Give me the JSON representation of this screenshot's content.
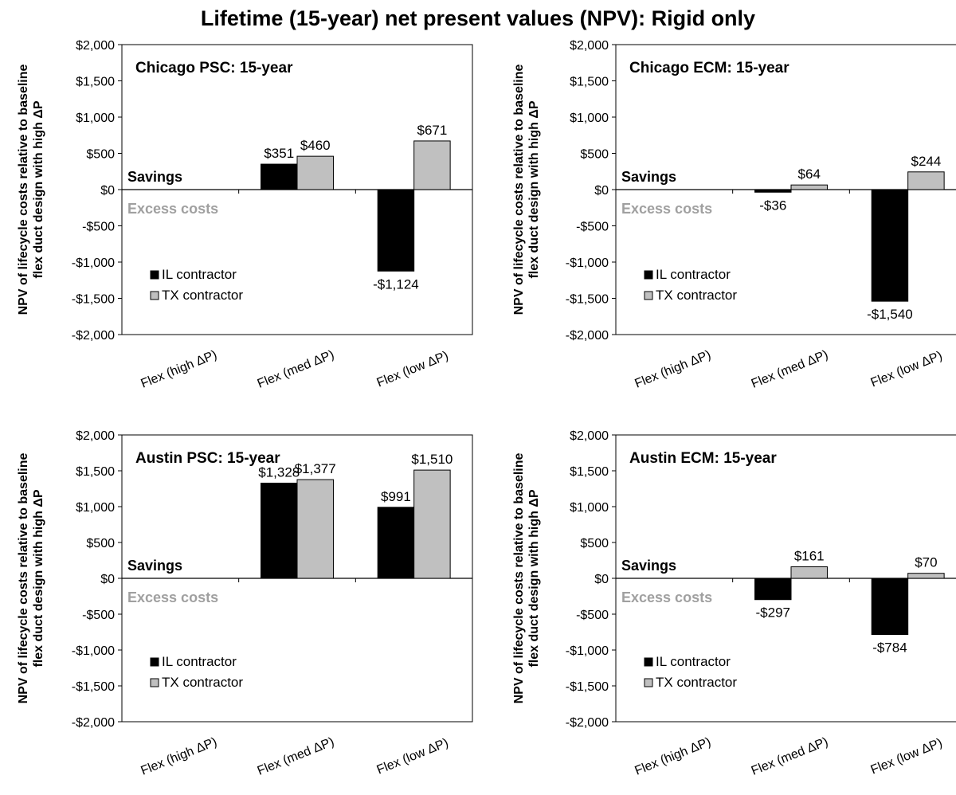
{
  "title": "Lifetime (15-year) net present values (NPV): Rigid only",
  "chart_data": [
    {
      "type": "bar",
      "title": "Chicago PSC: 15-year",
      "ylabel": "NPV of lifecycle costs relative to baseline flex duct design with high ΔP",
      "ylim": [
        -2000,
        2000
      ],
      "yticks": [
        2000,
        1500,
        1000,
        500,
        0,
        -500,
        -1000,
        -1500,
        -2000
      ],
      "ytick_labels": [
        "$2,000",
        "$1,500",
        "$1,000",
        "$500",
        "$0",
        "-$500",
        "-$1,000",
        "-$1,500",
        "-$2,000"
      ],
      "categories": [
        "Flex (high ΔP)",
        "Flex (med ΔP)",
        "Flex (low ΔP)"
      ],
      "series": [
        {
          "name": "IL contractor",
          "color": "#000000",
          "values": [
            null,
            351,
            -1124
          ],
          "labels": [
            "",
            "$351",
            "-$1,124"
          ]
        },
        {
          "name": "TX contractor",
          "color": "#c0c0c0",
          "values": [
            null,
            460,
            671
          ],
          "labels": [
            "",
            "$460",
            "$671"
          ]
        }
      ],
      "annotations": {
        "savings": "Savings",
        "excess": "Excess costs"
      },
      "legend": "bottom-left",
      "grid": false
    },
    {
      "type": "bar",
      "title": "Chicago ECM: 15-year",
      "ylabel": "NPV of lifecycle costs relative to baseline flex duct design with high ΔP",
      "ylim": [
        -2000,
        2000
      ],
      "yticks": [
        2000,
        1500,
        1000,
        500,
        0,
        -500,
        -1000,
        -1500,
        -2000
      ],
      "ytick_labels": [
        "$2,000",
        "$1,500",
        "$1,000",
        "$500",
        "$0",
        "-$500",
        "-$1,000",
        "-$1,500",
        "-$2,000"
      ],
      "categories": [
        "Flex (high ΔP)",
        "Flex (med ΔP)",
        "Flex (low ΔP)"
      ],
      "series": [
        {
          "name": "IL contractor",
          "color": "#000000",
          "values": [
            null,
            -36,
            -1540
          ],
          "labels": [
            "",
            "-$36",
            "-$1,540"
          ]
        },
        {
          "name": "TX contractor",
          "color": "#c0c0c0",
          "values": [
            null,
            64,
            244
          ],
          "labels": [
            "",
            "$64",
            "$244"
          ]
        }
      ],
      "annotations": {
        "savings": "Savings",
        "excess": "Excess costs"
      },
      "legend": "bottom-left",
      "grid": false
    },
    {
      "type": "bar",
      "title": "Austin PSC: 15-year",
      "ylabel": "NPV of lifecycle costs relative to baseline flex duct design with high ΔP",
      "ylim": [
        -2000,
        2000
      ],
      "yticks": [
        2000,
        1500,
        1000,
        500,
        0,
        -500,
        -1000,
        -1500,
        -2000
      ],
      "ytick_labels": [
        "$2,000",
        "$1,500",
        "$1,000",
        "$500",
        "$0",
        "-$500",
        "-$1,000",
        "-$1,500",
        "-$2,000"
      ],
      "categories": [
        "Flex (high ΔP)",
        "Flex (med ΔP)",
        "Flex (low ΔP)"
      ],
      "series": [
        {
          "name": "IL contractor",
          "color": "#000000",
          "values": [
            null,
            1328,
            991
          ],
          "labels": [
            "",
            "$1,328",
            "$991"
          ]
        },
        {
          "name": "TX contractor",
          "color": "#c0c0c0",
          "values": [
            null,
            1377,
            1510
          ],
          "labels": [
            "",
            "$1,377",
            "$1,510"
          ]
        }
      ],
      "annotations": {
        "savings": "Savings",
        "excess": "Excess costs"
      },
      "legend": "bottom-left",
      "grid": false
    },
    {
      "type": "bar",
      "title": "Austin ECM: 15-year",
      "ylabel": "NPV of lifecycle costs relative to baseline flex duct design with high ΔP",
      "ylim": [
        -2000,
        2000
      ],
      "yticks": [
        2000,
        1500,
        1000,
        500,
        0,
        -500,
        -1000,
        -1500,
        -2000
      ],
      "ytick_labels": [
        "$2,000",
        "$1,500",
        "$1,000",
        "$500",
        "$0",
        "-$500",
        "-$1,000",
        "-$1,500",
        "-$2,000"
      ],
      "categories": [
        "Flex (high ΔP)",
        "Flex (med ΔP)",
        "Flex (low ΔP)"
      ],
      "series": [
        {
          "name": "IL contractor",
          "color": "#000000",
          "values": [
            null,
            -297,
            -784
          ],
          "labels": [
            "",
            "-$297",
            "-$784"
          ]
        },
        {
          "name": "TX contractor",
          "color": "#c0c0c0",
          "values": [
            null,
            161,
            70
          ],
          "labels": [
            "",
            "$161",
            "$70"
          ]
        }
      ],
      "annotations": {
        "savings": "Savings",
        "excess": "Excess costs"
      },
      "legend": "bottom-left",
      "grid": false
    }
  ]
}
